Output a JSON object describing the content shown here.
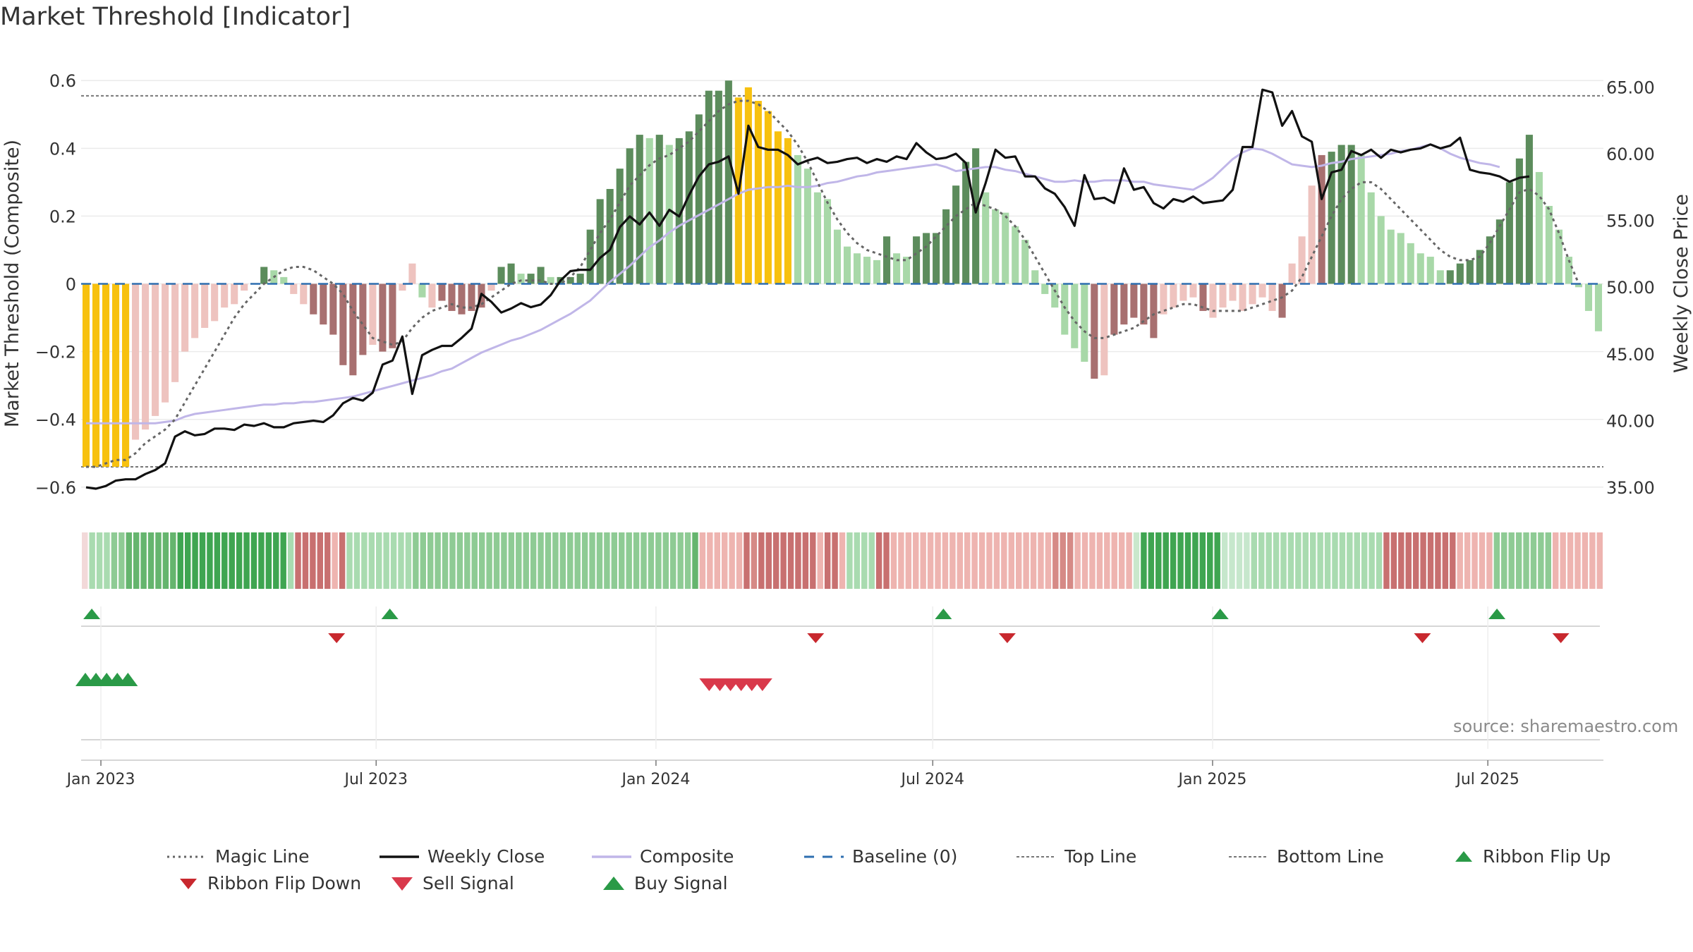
{
  "title": "Market Threshold [Indicator]",
  "source": "source: sharemaestro.com",
  "colors": {
    "yellow": "#f7c10f",
    "dark_green": "#5c8c5c",
    "light_green": "#a8d8a8",
    "dark_red": "#a87070",
    "light_red": "#eec3bf",
    "close": "#111111",
    "composite": "#c0b6e8",
    "magic": "#666666",
    "baseline": "#2e6fb0",
    "top_bottom": "#777777",
    "buy": "#2a9a47",
    "sell": "#d9394b",
    "flip_down": "#c8282e"
  },
  "legend": [
    {
      "key": "magic",
      "label": "Magic Line",
      "icon": "dotted-line"
    },
    {
      "key": "close",
      "label": "Weekly Close",
      "icon": "solid-line"
    },
    {
      "key": "composite",
      "label": "Composite",
      "icon": "solid-line"
    },
    {
      "key": "baseline",
      "label": "Baseline (0)",
      "icon": "dashed-line"
    },
    {
      "key": "top",
      "label": "Top Line",
      "icon": "dotted-line"
    },
    {
      "key": "bottom",
      "label": "Bottom Line",
      "icon": "dotted-line"
    },
    {
      "key": "flip_up",
      "label": "Ribbon Flip Up",
      "icon": "triangle-up"
    },
    {
      "key": "flip_down",
      "label": "Ribbon Flip Down",
      "icon": "triangle-down"
    },
    {
      "key": "sell",
      "label": "Sell Signal",
      "icon": "triangle-down"
    },
    {
      "key": "buy",
      "label": "Buy Signal",
      "icon": "triangle-up"
    }
  ],
  "chart_data": {
    "type": "bar",
    "title": "Market Threshold [Indicator]",
    "ylabel": "Market Threshold (Composite)",
    "y2label": "Weekly Close Price",
    "ylim": [
      -0.64,
      0.64
    ],
    "y2lim": [
      34.0,
      66.5
    ],
    "yticks": [
      0.6,
      0.4,
      0.2,
      0,
      -0.2,
      -0.4,
      -0.6
    ],
    "ytick_labels": [
      "0.6",
      "0.4",
      "0.2",
      "0",
      "−0.2",
      "−0.4",
      "−0.6"
    ],
    "y2ticks": [
      65,
      60,
      55,
      50,
      45,
      40,
      35
    ],
    "y2tick_labels": [
      "65.00",
      "60.00",
      "55.00",
      "50.00",
      "45.00",
      "40.00",
      "35.00"
    ],
    "x_start": "2022-12-19",
    "x_end": "2025-09-15",
    "xticks": [
      "2023-01-01",
      "2023-07-01",
      "2024-01-01",
      "2024-07-01",
      "2025-01-01",
      "2025-07-01"
    ],
    "xtick_labels": [
      "Jan 2023",
      "Jul 2023",
      "Jan 2024",
      "Jul 2024",
      "Jan 2025",
      "Jul 2025"
    ],
    "top_line": 0.555,
    "bottom_line": -0.54,
    "baseline": 0,
    "composite": [
      -0.54,
      -0.54,
      -0.54,
      -0.54,
      -0.54,
      -0.46,
      -0.43,
      -0.39,
      -0.35,
      -0.29,
      -0.2,
      -0.16,
      -0.13,
      -0.11,
      -0.07,
      -0.06,
      -0.02,
      0.0,
      0.05,
      0.04,
      0.02,
      -0.03,
      -0.06,
      -0.09,
      -0.12,
      -0.15,
      -0.24,
      -0.27,
      -0.21,
      -0.18,
      -0.2,
      -0.19,
      -0.02,
      0.06,
      -0.04,
      -0.07,
      -0.05,
      -0.08,
      -0.09,
      -0.08,
      -0.07,
      -0.02,
      0.05,
      0.06,
      0.03,
      0.03,
      0.05,
      0.02,
      0.02,
      0.02,
      0.03,
      0.16,
      0.25,
      0.28,
      0.34,
      0.4,
      0.44,
      0.43,
      0.44,
      0.41,
      0.43,
      0.45,
      0.5,
      0.57,
      0.57,
      0.6,
      0.55,
      0.58,
      0.54,
      0.51,
      0.45,
      0.43,
      0.38,
      0.34,
      0.27,
      0.25,
      0.16,
      0.11,
      0.09,
      0.08,
      0.07,
      0.14,
      0.09,
      0.08,
      0.14,
      0.15,
      0.15,
      0.22,
      0.29,
      0.36,
      0.4,
      0.27,
      0.22,
      0.21,
      0.17,
      0.13,
      0.04,
      -0.03,
      -0.07,
      -0.15,
      -0.19,
      -0.23,
      -0.28,
      -0.27,
      -0.15,
      -0.12,
      -0.1,
      -0.12,
      -0.16,
      -0.09,
      -0.07,
      -0.05,
      -0.04,
      -0.08,
      -0.1,
      -0.07,
      -0.05,
      -0.08,
      -0.06,
      -0.04,
      -0.08,
      -0.1,
      0.06,
      0.14,
      0.29,
      0.38,
      0.39,
      0.41,
      0.41,
      0.38,
      0.27,
      0.2,
      0.16,
      0.15,
      0.12,
      0.09,
      0.08,
      0.04,
      0.04,
      0.06,
      0.07,
      0.1,
      0.14,
      0.19,
      0.3,
      0.37,
      0.44,
      0.33,
      0.23,
      0.16,
      0.08,
      -0.01,
      -0.08,
      -0.14
    ],
    "bar_color_codes": "YYYYYLLLLLLLLLLLLGGGGLLDDDDDDLDDLLGLDDDDDLGGGGGGGGGGGGGGGGGGGGGGGGYYYYYYGGGGGGGGGGGGGGGGGGGGGGGGGGGGGGDLDDDDDLLLLDLLLLLLLDLLLDGGGGGGGGGGGGGGGGGGGGGGGGGGGGGGGGGGDD",
    "bar_color_legend": {
      "Y": "yellow",
      "G": "green (dark when rising, light when falling)",
      "D": "dark red",
      "L": "light red"
    },
    "weekly_close": [
      35.0,
      34.9,
      35.1,
      35.5,
      35.6,
      35.6,
      36.0,
      36.3,
      36.8,
      38.8,
      39.2,
      38.9,
      39.0,
      39.4,
      39.4,
      39.3,
      39.7,
      39.6,
      39.8,
      39.5,
      39.5,
      39.8,
      39.9,
      40.0,
      39.9,
      40.4,
      41.3,
      41.7,
      41.5,
      42.1,
      44.2,
      44.5,
      46.3,
      42.0,
      44.9,
      45.3,
      45.6,
      45.6,
      46.2,
      46.9,
      49.5,
      48.9,
      48.1,
      48.4,
      48.8,
      48.5,
      48.7,
      49.4,
      50.5,
      51.2,
      51.3,
      51.3,
      52.2,
      52.8,
      54.5,
      55.3,
      54.7,
      55.6,
      54.6,
      55.8,
      55.3,
      56.9,
      58.3,
      59.2,
      59.4,
      59.8,
      57.0,
      62.1,
      60.5,
      60.3,
      60.3,
      59.9,
      59.2,
      59.5,
      59.7,
      59.3,
      59.4,
      59.6,
      59.7,
      59.3,
      59.6,
      59.4,
      59.8,
      59.6,
      60.8,
      60.1,
      59.6,
      59.7,
      60.0,
      59.3,
      55.6,
      57.8,
      60.3,
      59.7,
      59.8,
      58.3,
      58.3,
      57.4,
      57.0,
      56.0,
      54.6,
      58.4,
      56.6,
      56.7,
      56.3,
      58.9,
      57.3,
      57.5,
      56.3,
      55.9,
      56.6,
      56.4,
      56.8,
      56.3,
      56.4,
      56.5,
      57.3,
      60.5,
      60.5,
      64.8,
      64.6,
      62.1,
      63.2,
      61.3,
      60.9,
      56.6,
      58.6,
      58.8,
      60.2,
      59.9,
      60.3,
      59.7,
      60.3,
      60.1,
      60.3,
      60.4,
      60.7,
      60.4,
      60.6,
      61.2,
      58.8,
      58.6,
      58.5,
      58.3,
      57.9,
      58.2,
      58.3
    ],
    "magic_line": [
      -0.54,
      -0.54,
      -0.53,
      -0.52,
      -0.52,
      -0.5,
      -0.47,
      -0.45,
      -0.43,
      -0.4,
      -0.35,
      -0.3,
      -0.25,
      -0.2,
      -0.15,
      -0.1,
      -0.06,
      -0.03,
      0.0,
      0.02,
      0.04,
      0.05,
      0.05,
      0.04,
      0.02,
      0.0,
      -0.03,
      -0.08,
      -0.12,
      -0.16,
      -0.17,
      -0.18,
      -0.17,
      -0.13,
      -0.1,
      -0.08,
      -0.07,
      -0.06,
      -0.07,
      -0.07,
      -0.06,
      -0.04,
      -0.02,
      0.0,
      0.01,
      0.01,
      0.01,
      0.0,
      0.0,
      0.02,
      0.05,
      0.1,
      0.15,
      0.19,
      0.24,
      0.29,
      0.32,
      0.35,
      0.37,
      0.38,
      0.4,
      0.42,
      0.45,
      0.48,
      0.51,
      0.53,
      0.54,
      0.54,
      0.53,
      0.51,
      0.48,
      0.45,
      0.41,
      0.36,
      0.3,
      0.24,
      0.19,
      0.15,
      0.12,
      0.1,
      0.09,
      0.08,
      0.07,
      0.07,
      0.09,
      0.11,
      0.14,
      0.17,
      0.2,
      0.22,
      0.24,
      0.23,
      0.22,
      0.2,
      0.17,
      0.13,
      0.08,
      0.03,
      -0.02,
      -0.07,
      -0.11,
      -0.14,
      -0.16,
      -0.16,
      -0.15,
      -0.14,
      -0.13,
      -0.11,
      -0.09,
      -0.08,
      -0.07,
      -0.06,
      -0.06,
      -0.07,
      -0.08,
      -0.08,
      -0.08,
      -0.08,
      -0.07,
      -0.06,
      -0.05,
      -0.04,
      -0.02,
      0.02,
      0.08,
      0.14,
      0.2,
      0.25,
      0.28,
      0.3,
      0.3,
      0.28,
      0.25,
      0.22,
      0.19,
      0.16,
      0.13,
      0.1,
      0.08,
      0.07,
      0.07,
      0.08,
      0.12,
      0.17,
      0.22,
      0.27,
      0.28,
      0.26,
      0.22,
      0.15,
      0.07,
      0.0
    ],
    "composite_line": [
      39.8,
      39.8,
      39.8,
      39.8,
      39.8,
      39.8,
      39.8,
      39.8,
      39.9,
      40.0,
      40.3,
      40.5,
      40.6,
      40.7,
      40.8,
      40.9,
      41.0,
      41.1,
      41.2,
      41.2,
      41.3,
      41.3,
      41.4,
      41.4,
      41.5,
      41.6,
      41.7,
      41.8,
      42.0,
      42.2,
      42.4,
      42.6,
      42.8,
      43.0,
      43.2,
      43.4,
      43.7,
      43.9,
      44.3,
      44.7,
      45.1,
      45.4,
      45.7,
      46.0,
      46.2,
      46.5,
      46.8,
      47.2,
      47.6,
      48.0,
      48.5,
      49.0,
      49.7,
      50.4,
      51.0,
      51.6,
      52.3,
      53.0,
      53.5,
      54.1,
      54.6,
      55.0,
      55.4,
      55.8,
      56.2,
      56.6,
      57.0,
      57.3,
      57.4,
      57.5,
      57.5,
      57.6,
      57.5,
      57.5,
      57.6,
      57.8,
      57.9,
      58.1,
      58.3,
      58.4,
      58.6,
      58.7,
      58.8,
      58.9,
      59.0,
      59.1,
      59.2,
      59.0,
      58.7,
      58.8,
      58.9,
      59.0,
      59.0,
      58.8,
      58.7,
      58.5,
      58.3,
      58.1,
      57.9,
      57.9,
      58.0,
      57.9,
      57.9,
      58.0,
      58.0,
      58.0,
      57.9,
      57.9,
      57.7,
      57.6,
      57.5,
      57.4,
      57.3,
      57.7,
      58.2,
      58.9,
      59.6,
      60.1,
      60.4,
      60.3,
      60.0,
      59.6,
      59.2,
      59.1,
      59.0,
      59.1,
      59.3,
      59.4,
      59.6,
      59.7,
      59.8,
      59.9,
      60.0,
      60.2,
      60.3,
      60.5,
      60.7,
      60.4,
      60.0,
      59.7,
      59.5,
      59.3,
      59.2,
      59.0
    ],
    "ribbon_color_codes": "lmmmddeeeeeeebbbbbbbbbbbbbbbmrrrrrqrmmmmmmmmmddddddddddddddddddddddddddddddddddddddeqqqqqqrsrrrrrrrrqrrqmmmmrrqqqqqqqqqqqqqqqqqqqqqqsssqqqqqqqqpbbbbbbbbbbbaaaammmmmmmmmmmmmmmmmmrrrrrrrrrrqqqqqddddddddqqqqqqq",
    "ribbon_color_legend": {
      "a": "#c6e7cc",
      "b": "#3fa551",
      "d": "#8ecb94",
      "e": "#65b56e",
      "l": "#f2d9d9",
      "m": "#a9dbb0",
      "p": "#c9e8cc",
      "q": "#eeb4b0",
      "r": "#c87070",
      "s": "#d68a86"
    },
    "ribbon_flip_up": [
      "2022-12-26",
      "2023-07-10",
      "2024-07-08",
      "2025-01-06",
      "2025-07-07"
    ],
    "ribbon_flip_down": [
      "2023-06-05",
      "2024-04-15",
      "2024-08-19",
      "2025-05-19",
      "2025-08-18"
    ],
    "buy_signals": [
      "2022-12-19",
      "2022-12-26",
      "2023-01-02",
      "2023-01-09",
      "2023-01-16"
    ],
    "sell_signals": [
      "2024-02-05",
      "2024-02-12",
      "2024-02-19",
      "2024-02-26",
      "2024-03-04",
      "2024-03-11"
    ]
  }
}
